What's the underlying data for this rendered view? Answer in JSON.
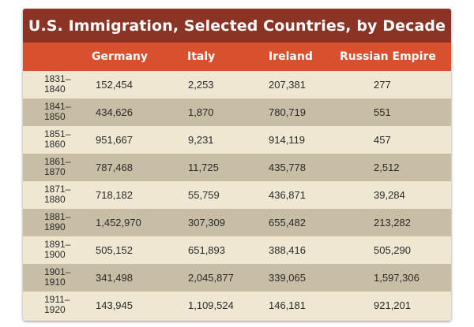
{
  "title": "U.S. Immigration, Selected Countries, by Decade",
  "columns": [
    "Germany",
    "Italy",
    "Ireland",
    "Russian Empire"
  ],
  "rows": [
    {
      "decade": "1831–1840",
      "germany": "152,454",
      "italy": "2,253",
      "ireland": "207,381",
      "russia": "277"
    },
    {
      "decade": "1841–1850",
      "germany": "434,626",
      "italy": "1,870",
      "ireland": "780,719",
      "russia": "551"
    },
    {
      "decade": "1851–1860",
      "germany": "951,667",
      "italy": "9,231",
      "ireland": "914,119",
      "russia": "457"
    },
    {
      "decade": "1861–1870",
      "germany": "787,468",
      "italy": "11,725",
      "ireland": "435,778",
      "russia": "2,512"
    },
    {
      "decade": "1871–1880",
      "germany": "718,182",
      "italy": "55,759",
      "ireland": "436,871",
      "russia": "39,284"
    },
    {
      "decade": "1881–1890",
      "germany": "1,452,970",
      "italy": "307,309",
      "ireland": "655,482",
      "russia": "213,282"
    },
    {
      "decade": "1891–1900",
      "germany": "505,152",
      "italy": "651,893",
      "ireland": "388,416",
      "russia": "505,290"
    },
    {
      "decade": "1901–1910",
      "germany": "341,498",
      "italy": "2,045,877",
      "ireland": "339,065",
      "russia": "1,597,306"
    },
    {
      "decade": "1911–1920",
      "germany": "143,945",
      "italy": "1,109,524",
      "ireland": "146,181",
      "russia": "921,201"
    }
  ],
  "colors": {
    "title_bg": "#8b3426",
    "header_bg": "#d9502f",
    "row_light": "#efe7d2",
    "row_dark": "#c7bea5"
  }
}
